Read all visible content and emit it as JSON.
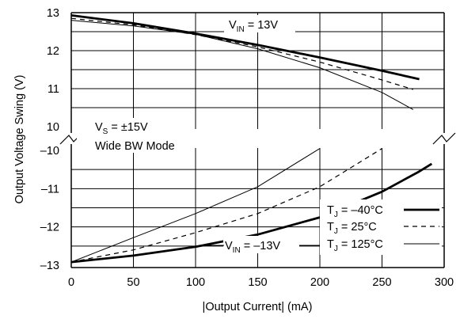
{
  "chart_data": {
    "type": "line",
    "xlabel": "|Output Current| (mA)",
    "ylabel": "Output Voltage Swing (V)",
    "xlim": [
      0,
      300
    ],
    "x_ticks": [
      "0",
      "50",
      "100",
      "150",
      "200",
      "250",
      "300"
    ],
    "top_panel": {
      "ylim": [
        10,
        13
      ],
      "y_ticks": [
        "13",
        "12",
        "11",
        "10"
      ]
    },
    "bottom_panel": {
      "ylim": [
        -13,
        -10
      ],
      "y_ticks": [
        "–10",
        "–11",
        "–12",
        "–13"
      ]
    },
    "grid": true,
    "annotations": {
      "vin_pos": {
        "main": "V",
        "sub": "IN",
        "rest": " = 13V"
      },
      "vin_neg": {
        "main": "V",
        "sub": "IN",
        "rest": " = –13V"
      },
      "vs": {
        "main": "V",
        "sub": "S",
        "rest": " = ±15V"
      },
      "mode": "Wide BW Mode"
    },
    "legend": [
      {
        "main": "T",
        "sub": "J",
        "rest": " = –40°C"
      },
      {
        "main": "T",
        "sub": "J",
        "rest": " = 25°C"
      },
      {
        "main": "T",
        "sub": "J",
        "rest": " = 125°C"
      }
    ],
    "series": [
      {
        "style": "thick",
        "top": {
          "x": [
            0,
            50,
            100,
            150,
            200,
            250,
            280
          ],
          "y": [
            12.93,
            12.72,
            12.45,
            12.15,
            11.82,
            11.47,
            11.25
          ]
        },
        "bottom": {
          "x": [
            0,
            50,
            100,
            150,
            200,
            250,
            280,
            290
          ],
          "y": [
            -12.92,
            -12.75,
            -12.52,
            -12.2,
            -11.75,
            -11.08,
            -10.55,
            -10.35
          ]
        }
      },
      {
        "style": "dashed",
        "top": {
          "x": [
            0,
            50,
            100,
            150,
            200,
            250,
            275
          ],
          "y": [
            12.85,
            12.68,
            12.42,
            12.1,
            11.7,
            11.23,
            10.98
          ]
        },
        "bottom": {
          "x": [
            0,
            50,
            100,
            150,
            200,
            250
          ],
          "y": [
            -12.92,
            -12.6,
            -12.15,
            -11.65,
            -10.95,
            -9.95
          ]
        }
      },
      {
        "style": "thin",
        "top": {
          "x": [
            0,
            50,
            100,
            150,
            200,
            250,
            275
          ],
          "y": [
            12.8,
            12.65,
            12.43,
            12.05,
            11.55,
            10.9,
            10.45
          ]
        },
        "bottom": {
          "x": [
            0,
            50,
            100,
            150,
            200
          ],
          "y": [
            -12.92,
            -12.28,
            -11.65,
            -10.95,
            -9.95
          ]
        }
      }
    ]
  }
}
